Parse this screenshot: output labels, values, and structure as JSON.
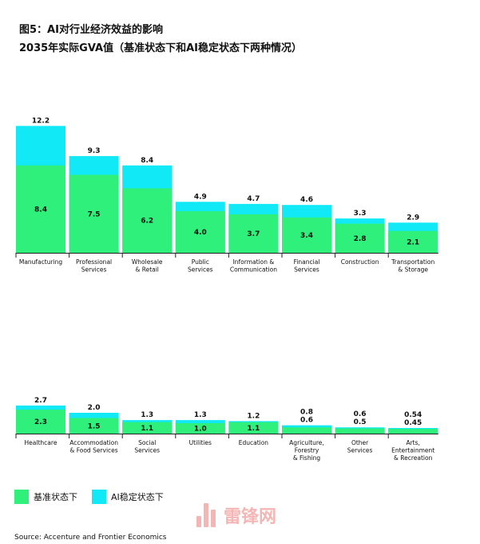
{
  "header": {
    "title": "图5：AI对行业经济效益的影响",
    "subtitle": "2035年实际GVA值（基准状态下和AI稳定状态下两种情况）"
  },
  "legend": {
    "baseline": "基准状态下",
    "ai": "AI稳定状态下"
  },
  "source": "Source: Accenture and Frontier Economics",
  "watermark": "雷锋网",
  "colors": {
    "baseline": "#2ef07a",
    "ai": "#11e9f6"
  },
  "chart_data": [
    {
      "type": "bar",
      "stacked_overlay": true,
      "categories": [
        "Manufacturing",
        "Professional\nServices",
        "Wholesale\n& Retail",
        "Public\nServices",
        "Information &\nCommunication",
        "Financial\nServices",
        "Construction",
        "Transportation\n& Storage"
      ],
      "series": [
        {
          "name": "基准状态下",
          "values": [
            8.4,
            7.5,
            6.2,
            4.0,
            3.7,
            3.4,
            2.8,
            2.1
          ]
        },
        {
          "name": "AI稳定状态下",
          "values": [
            12.2,
            9.3,
            8.4,
            4.9,
            4.7,
            4.6,
            3.3,
            2.9
          ]
        }
      ],
      "base_labels": [
        "8.4",
        "7.5",
        "6.2",
        "4.0",
        "3.7",
        "3.4",
        "2.8",
        "2.1"
      ],
      "ai_labels": [
        "12.2",
        "9.3",
        "8.4",
        "4.9",
        "4.7",
        "4.6",
        "3.3",
        "2.9"
      ],
      "grid": false
    },
    {
      "type": "bar",
      "stacked_overlay": true,
      "categories": [
        "Healthcare",
        "Accommodation\n& Food Services",
        "Social\nServices",
        "Utilities",
        "Education",
        "Agriculture,\nForestry\n& Fishing",
        "Other\nServices",
        "Arts,\nEntertainment\n& Recreation"
      ],
      "series": [
        {
          "name": "基准状态下",
          "values": [
            2.3,
            1.5,
            1.1,
            1.0,
            1.1,
            0.6,
            0.5,
            0.45
          ]
        },
        {
          "name": "AI稳定状态下",
          "values": [
            2.7,
            2.0,
            1.3,
            1.3,
            1.2,
            0.8,
            0.6,
            0.54
          ]
        }
      ],
      "base_labels": [
        "2.3",
        "1.5",
        "1.1",
        "1.0",
        "1.1",
        "0.6",
        "0.5",
        "0.45"
      ],
      "ai_labels": [
        "2.7",
        "2.0",
        "1.3",
        "1.3",
        "1.2",
        "0.8",
        "0.6",
        "0.54"
      ],
      "grid": false
    }
  ]
}
